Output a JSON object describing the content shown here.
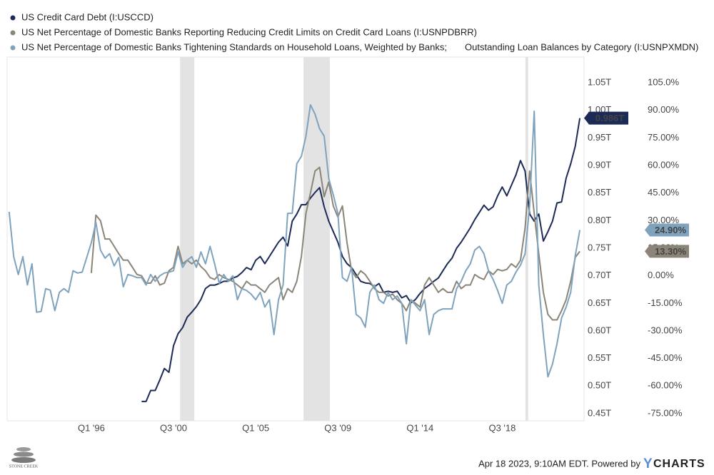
{
  "chart_data": {
    "type": "line",
    "x": [
      1991.5,
      1991.75,
      1992,
      1992.25,
      1992.5,
      1992.75,
      1993,
      1993.25,
      1993.5,
      1993.75,
      1994,
      1994.25,
      1994.5,
      1994.75,
      1995,
      1995.25,
      1995.5,
      1995.75,
      1996,
      1996.25,
      1996.5,
      1996.75,
      1997,
      1997.25,
      1997.5,
      1997.75,
      1998,
      1998.25,
      1998.5,
      1998.75,
      1999,
      1999.25,
      1999.5,
      1999.75,
      2000,
      2000.25,
      2000.5,
      2000.75,
      2001,
      2001.25,
      2001.5,
      2001.75,
      2002,
      2002.25,
      2002.5,
      2002.75,
      2003,
      2003.25,
      2003.5,
      2003.75,
      2004,
      2004.25,
      2004.5,
      2004.75,
      2005,
      2005.25,
      2005.5,
      2005.75,
      2006,
      2006.25,
      2006.5,
      2006.75,
      2007,
      2007.25,
      2007.5,
      2007.75,
      2008,
      2008.25,
      2008.5,
      2008.75,
      2009,
      2009.25,
      2009.5,
      2009.75,
      2010,
      2010.25,
      2010.5,
      2010.75,
      2011,
      2011.25,
      2011.5,
      2011.75,
      2012,
      2012.25,
      2012.5,
      2012.75,
      2013,
      2013.25,
      2013.5,
      2013.75,
      2014,
      2014.25,
      2014.5,
      2014.75,
      2015,
      2015.25,
      2015.5,
      2015.75,
      2016,
      2016.25,
      2016.5,
      2016.75,
      2017,
      2017.25,
      2017.5,
      2017.75,
      2018,
      2018.25,
      2018.5,
      2018.75,
      2019,
      2019.25,
      2019.5,
      2019.75,
      2020,
      2020.25,
      2020.5,
      2020.75,
      2021,
      2021.25,
      2021.5,
      2021.75,
      2022,
      2022.25,
      2022.5,
      2022.75
    ],
    "xlim": [
      1991.39,
      2022.98
    ],
    "xticks": [
      {
        "value": 1996,
        "label": "Q1 '96"
      },
      {
        "value": 2000.5,
        "label": "Q3 '00"
      },
      {
        "value": 2005,
        "label": "Q1 '05"
      },
      {
        "value": 2009.5,
        "label": "Q3 '09"
      },
      {
        "value": 2014,
        "label": "Q1 '14"
      },
      {
        "value": 2018.5,
        "label": "Q3 '18"
      }
    ],
    "ylim": [
      0.437,
      1.0967
    ],
    "yticks": [
      {
        "value": 0.45,
        "label": "0.45T"
      },
      {
        "value": 0.5,
        "label": "0.50T"
      },
      {
        "value": 0.55,
        "label": "0.55T"
      },
      {
        "value": 0.6,
        "label": "0.60T"
      },
      {
        "value": 0.65,
        "label": "0.65T"
      },
      {
        "value": 0.7,
        "label": "0.70T"
      },
      {
        "value": 0.75,
        "label": "0.75T"
      },
      {
        "value": 0.8,
        "label": "0.80T"
      },
      {
        "value": 0.85,
        "label": "0.85T"
      },
      {
        "value": 0.9,
        "label": "0.90T"
      },
      {
        "value": 0.95,
        "label": "0.95T"
      },
      {
        "value": 1.0,
        "label": "1.00T"
      },
      {
        "value": 1.05,
        "label": "1.05T"
      }
    ],
    "y2lim": [
      -78.9,
      119
    ],
    "y2ticks": [
      {
        "value": -75,
        "label": "-75.00%"
      },
      {
        "value": -60,
        "label": "-60.00%"
      },
      {
        "value": -45,
        "label": "-45.00%"
      },
      {
        "value": -30,
        "label": "-30.00%"
      },
      {
        "value": -15,
        "label": "-15.00%"
      },
      {
        "value": 0,
        "label": "0.00%"
      },
      {
        "value": 15,
        "label": "15.00%"
      },
      {
        "value": 30,
        "label": "30.00%"
      },
      {
        "value": 45,
        "label": "45.00%"
      },
      {
        "value": 60,
        "label": "60.00%"
      },
      {
        "value": 75,
        "label": "75.00%"
      },
      {
        "value": 90,
        "label": "90.00%"
      },
      {
        "value": 105,
        "label": "105.0%"
      }
    ],
    "grid": false,
    "recessions": [
      [
        2000.86,
        2001.64
      ],
      [
        2007.62,
        2009.06
      ],
      [
        2019.77,
        2019.92
      ]
    ],
    "series": [
      {
        "name": "US Credit Card Debt (I:USCCD)",
        "color": "#1c2a57",
        "end_label": "0.986T",
        "values": [
          null,
          null,
          null,
          null,
          null,
          null,
          null,
          null,
          null,
          null,
          null,
          null,
          null,
          null,
          null,
          null,
          null,
          null,
          null,
          null,
          null,
          null,
          null,
          null,
          null,
          null,
          null,
          null,
          null,
          0.472,
          0.472,
          0.492,
          0.492,
          0.511,
          0.532,
          0.525,
          0.573,
          0.595,
          0.606,
          0.625,
          0.634,
          0.644,
          0.657,
          0.677,
          0.683,
          0.683,
          0.686,
          0.69,
          0.69,
          0.696,
          0.699,
          0.706,
          0.715,
          0.711,
          0.728,
          0.735,
          0.722,
          0.735,
          0.748,
          0.761,
          0.77,
          0.754,
          0.799,
          0.812,
          0.829,
          0.829,
          0.841,
          0.851,
          0.86,
          0.825,
          0.799,
          0.78,
          0.761,
          0.735,
          0.722,
          0.715,
          0.702,
          0.69,
          0.687,
          0.686,
          0.68,
          0.686,
          0.67,
          0.672,
          0.67,
          0.672,
          0.66,
          0.664,
          0.651,
          0.657,
          0.668,
          0.677,
          0.683,
          0.69,
          0.696,
          0.709,
          0.722,
          0.732,
          0.75,
          0.761,
          0.774,
          0.787,
          0.802,
          0.815,
          0.828,
          0.819,
          0.825,
          0.845,
          0.861,
          0.845,
          0.864,
          0.883,
          0.909,
          0.89,
          0.812,
          0.799,
          0.812,
          0.763,
          0.78,
          0.799,
          0.832,
          0.834,
          0.877,
          0.903,
          0.935,
          0.986
        ]
      },
      {
        "name": "US Net Percentage of Domestic Banks Reporting Reducing Credit Limits on Credit Card Loans (I:USNPDBRR)",
        "color": "#8a8578",
        "axis": "y2",
        "end_label": "13.30%",
        "values": [
          null,
          null,
          null,
          null,
          null,
          null,
          null,
          null,
          null,
          null,
          null,
          null,
          null,
          null,
          null,
          null,
          null,
          null,
          1.5,
          33,
          30,
          20,
          20,
          16,
          12,
          8.5,
          8.5,
          4.6,
          0.7,
          0,
          -4,
          -4,
          0,
          -5,
          -4,
          2.7,
          4.6,
          16,
          6.5,
          8.5,
          6.5,
          8.5,
          5,
          2.7,
          -1,
          -2,
          0.7,
          -1,
          -2,
          -3,
          -5,
          -7,
          -3,
          -5,
          -5,
          -7,
          -9,
          -5,
          -3,
          -1,
          -13,
          -7,
          -9,
          -3,
          10.4,
          34,
          45,
          57,
          59,
          43,
          51,
          38,
          32,
          38,
          18,
          2.7,
          -1,
          2.7,
          0.7,
          -3,
          -7,
          -9,
          -9,
          -11,
          -10,
          -13,
          -15,
          -19,
          -13,
          -15,
          -17,
          -5,
          -1,
          -5,
          -9,
          -7,
          -9,
          -9,
          -3,
          -7,
          -5,
          -5,
          0.7,
          -1,
          -2,
          2.7,
          0.7,
          3.5,
          2.7,
          3.5,
          6.5,
          4.6,
          8.5,
          26,
          57,
          34,
          12,
          -9,
          -21,
          -24,
          -24,
          -19,
          -13,
          -3,
          10,
          13.3
        ]
      },
      {
        "name": "US Net Percentage of Domestic Banks Tightening Standards on Household Loans, Weighted by Banks;",
        "name_continued": "Outstanding Loan Balances by Category (I:USNPXMDN)",
        "color": "#7fa3bd",
        "axis": "y2",
        "end_label": "24.90%",
        "values": [
          34.8,
          10.4,
          0.7,
          10.4,
          -5,
          6.5,
          -19.8,
          -19.4,
          -7,
          -7.8,
          -19,
          -9,
          -7,
          -9,
          2.7,
          1.5,
          2,
          10,
          18,
          29,
          14,
          9.6,
          12,
          5.4,
          10,
          -6,
          0.7,
          0,
          -1,
          -1,
          -5,
          0.7,
          -3,
          0,
          1.5,
          2,
          2.7,
          13,
          4.6,
          8.5,
          10.4,
          4.6,
          13,
          6.5,
          16,
          6.5,
          -4,
          0.7,
          -3,
          0,
          -13,
          -7,
          -8,
          -10,
          -13,
          -9,
          -17,
          -13,
          -32,
          -13,
          -5,
          34,
          34,
          61,
          65,
          76,
          93,
          88,
          80,
          76,
          53,
          44,
          34,
          -1,
          -3,
          4.6,
          -21,
          -23,
          -28,
          -9,
          -5,
          -13,
          -15,
          -9,
          -13,
          -11,
          -15,
          -37,
          -13,
          -16,
          -19,
          -13,
          -32,
          -21,
          -19,
          -18,
          -18,
          -18,
          -7,
          -3,
          2.7,
          6.5,
          14,
          16,
          12,
          2.7,
          -2,
          -8,
          -15,
          -5,
          -3,
          2,
          5.8,
          12,
          38,
          89.5,
          -5,
          -32,
          -55,
          -48,
          -37,
          -23,
          -17,
          -9,
          11,
          24.9
        ]
      }
    ]
  },
  "footer": {
    "timestamp": "Apr 18 2023, 9:10AM EDT. Powered by",
    "brand_y": "Y",
    "brand_rest": "CHARTS"
  },
  "logo": {
    "name": "STONE CREEK"
  }
}
